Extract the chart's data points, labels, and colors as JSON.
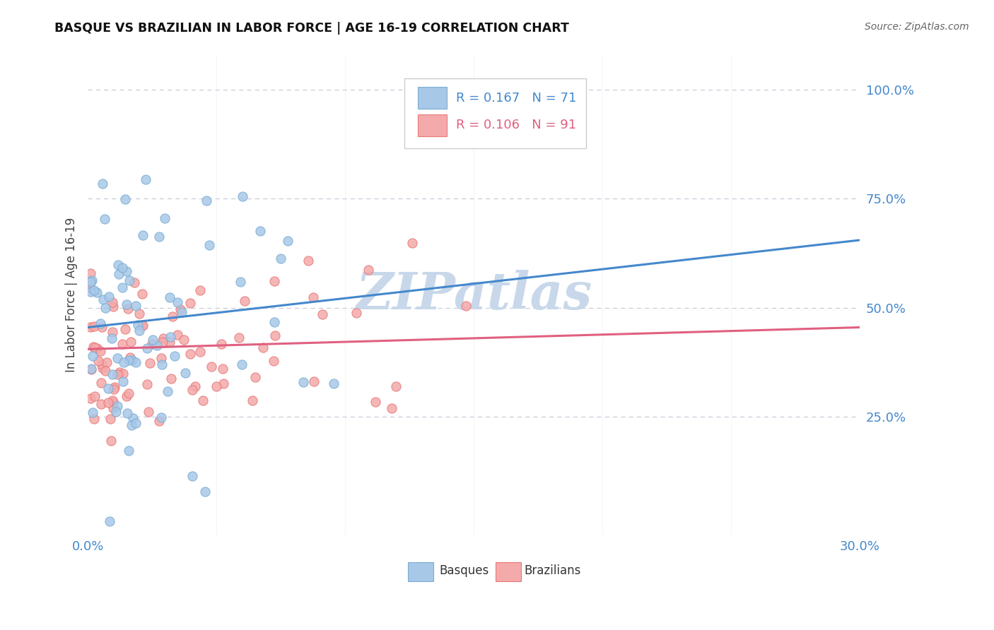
{
  "title": "BASQUE VS BRAZILIAN IN LABOR FORCE | AGE 16-19 CORRELATION CHART",
  "source": "Source: ZipAtlas.com",
  "ylabel": "In Labor Force | Age 16-19",
  "xlim": [
    0.0,
    0.3
  ],
  "ylim": [
    -0.02,
    1.08
  ],
  "yticks": [
    0.25,
    0.5,
    0.75,
    1.0
  ],
  "ytick_labels": [
    "25.0%",
    "50.0%",
    "75.0%",
    "100.0%"
  ],
  "basque_color": "#a8c8e8",
  "basque_edge_color": "#7aadd4",
  "brazilian_color": "#f4aaaa",
  "brazilian_edge_color": "#e87878",
  "basque_line_color": "#4488cc",
  "brazilian_line_color": "#e06080",
  "basque_trend_x": [
    0.0,
    0.3
  ],
  "basque_trend_y": [
    0.455,
    0.655
  ],
  "brazilian_trend_x": [
    0.0,
    0.3
  ],
  "brazilian_trend_y": [
    0.405,
    0.455
  ],
  "watermark_color": "#c8d8ea",
  "legend_R_color": "#4488cc",
  "legend_R2_color": "#e06080",
  "grid_color": "#c8ccd8",
  "tick_color": "#4488cc"
}
